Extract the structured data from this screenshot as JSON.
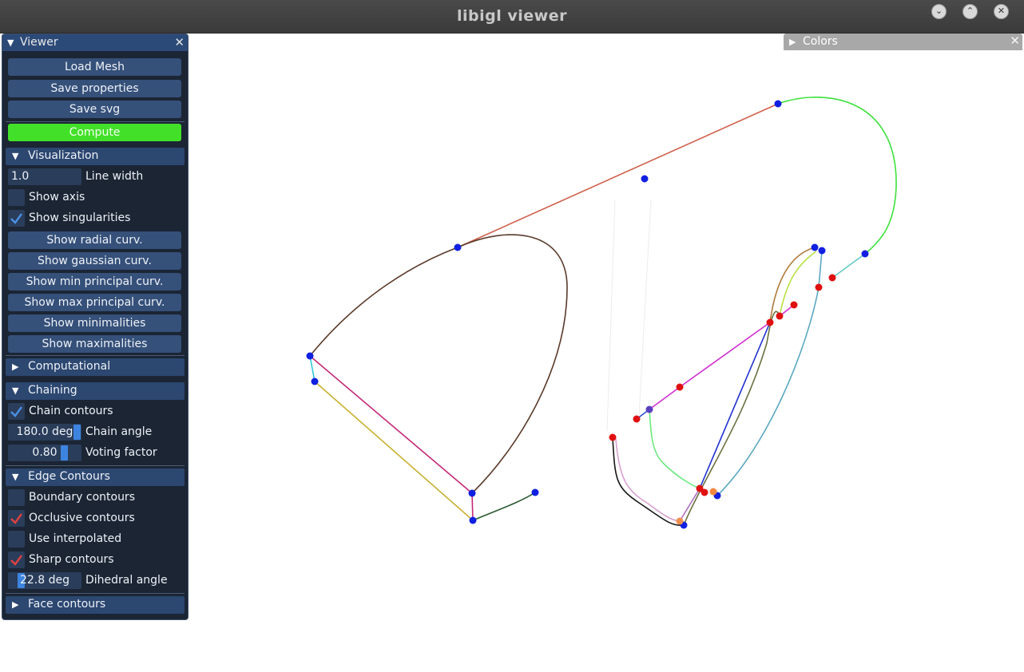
{
  "window": {
    "title": "libigl viewer"
  },
  "viewer_panel": {
    "title": "Viewer",
    "buttons": {
      "load_mesh": "Load Mesh",
      "save_properties": "Save properties",
      "save_svg": "Save svg",
      "compute": "Compute"
    },
    "visualization": {
      "header": "Visualization",
      "line_width_value": "1.0",
      "line_width_label": "Line width",
      "show_axis": "Show axis",
      "show_axis_checked": false,
      "show_singularities": "Show singularities",
      "show_singularities_checked": true,
      "show_radial_curv": "Show radial curv.",
      "show_gaussian_curv": "Show gaussian curv.",
      "show_min_principal_curv": "Show min principal curv.",
      "show_max_principal_curv": "Show max principal curv.",
      "show_minimalities": "Show minimalities",
      "show_maximalities": "Show maximalities"
    },
    "computational": {
      "header": "Computational"
    },
    "chaining": {
      "header": "Chaining",
      "chain_contours": "Chain contours",
      "chain_contours_checked": true,
      "chain_angle_value": "180.0 deg",
      "chain_angle_label": "Chain angle",
      "chain_angle_fraction": 1.0,
      "voting_factor_value": "0.80",
      "voting_factor_label": "Voting factor",
      "voting_factor_fraction": 0.8
    },
    "edge_contours": {
      "header": "Edge Contours",
      "boundary_contours": "Boundary contours",
      "boundary_contours_checked": false,
      "occlusive_contours": "Occlusive contours",
      "occlusive_contours_checked": true,
      "use_interpolated": "Use interpolated",
      "use_interpolated_checked": false,
      "sharp_contours": "Sharp contours",
      "sharp_contours_checked": true,
      "dihedral_angle_value": "22.8 deg",
      "dihedral_angle_label": "Dihedral angle",
      "dihedral_angle_fraction": 0.13
    },
    "face_contours": {
      "header": "Face contours"
    }
  },
  "colors_panel": {
    "title": "Colors"
  },
  "colors": {
    "accent_blue": "#3d84e0",
    "compute_green": "#43e02a",
    "check_blue": "#4a90e2",
    "check_red": "#e04040"
  }
}
